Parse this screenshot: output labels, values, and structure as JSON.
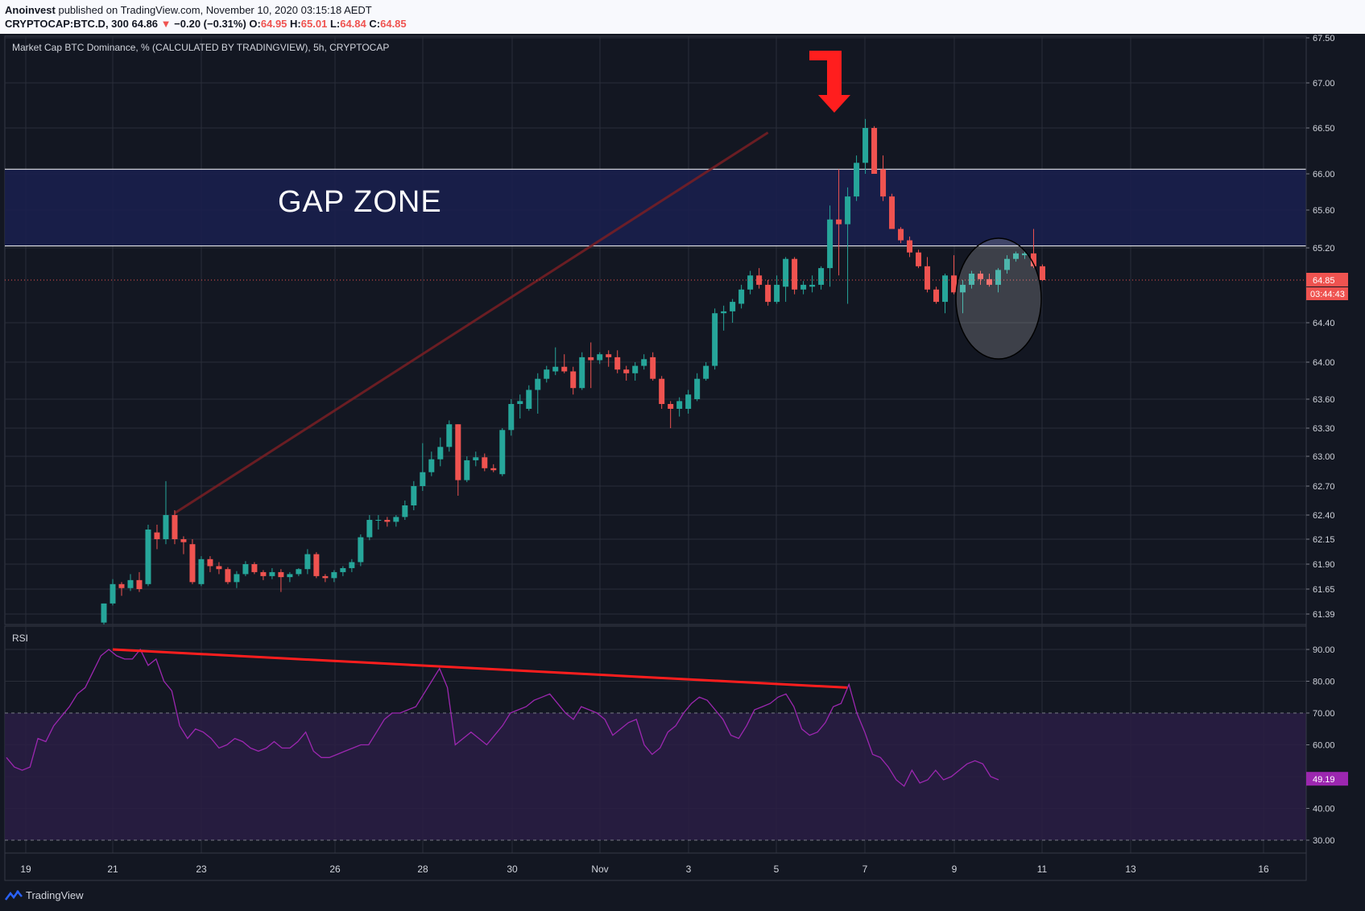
{
  "header": {
    "author": "Anoinvest",
    "published": "published on TradingView.com, November 10, 2020 03:15:18 AEDT",
    "symbol": "CRYPTOCAP:BTC.D, 300",
    "last": "64.86",
    "change_arrow": "▼",
    "change": "−0.20 (−0.31%)",
    "o_label": "O:",
    "o_value": "64.95",
    "h_label": "H:",
    "h_value": "65.01",
    "l_label": "L:",
    "l_value": "64.84",
    "c_label": "C:",
    "c_value": "64.85"
  },
  "main_pane": {
    "title": "Market Cap BTC Dominance, % (CALCULATED BY TRADINGVIEW), 5h, CRYPTOCAP",
    "gap_zone_label": "GAP ZONE",
    "price_badge": "64.85",
    "countdown_badge": "03:44:43"
  },
  "rsi_pane": {
    "title": "RSI",
    "value_badge": "49.19"
  },
  "footer": {
    "brand": "TradingView",
    "logo_icon": "tradingview-logo-icon"
  },
  "colors": {
    "background": "#131722",
    "bull": "#26a69a",
    "bear": "#ef5350",
    "gap_zone": "#1a1f4d",
    "rsi_band": "#2a1d44",
    "rsi_line": "#9c27b0",
    "annotation_red": "#ff1e1e"
  },
  "chart_data": [
    {
      "type": "candlestick",
      "title": "Market Cap BTC Dominance, % (CALCULATED BY TRADINGVIEW), 5h, CRYPTOCAP",
      "x_axis_labels": [
        "19",
        "21",
        "23",
        "26",
        "28",
        "30",
        "Nov",
        "3",
        "5",
        "7",
        "9",
        "11",
        "13",
        "16"
      ],
      "y_axis_labels": [
        "67.50",
        "67.00",
        "66.50",
        "66.00",
        "65.60",
        "65.20",
        "64.85",
        "64.40",
        "64.00",
        "63.60",
        "63.30",
        "63.00",
        "62.70",
        "62.40",
        "62.15",
        "61.90",
        "61.65",
        "61.39"
      ],
      "ylim": [
        61.3,
        67.5
      ],
      "gap_zone": [
        65.22,
        66.05
      ],
      "current_price": 64.85,
      "candles": [
        {
          "o": 61.3,
          "h": 61.5,
          "l": 61.28,
          "c": 61.5
        },
        {
          "o": 61.5,
          "h": 61.75,
          "l": 61.48,
          "c": 61.7
        },
        {
          "o": 61.7,
          "h": 61.72,
          "l": 61.58,
          "c": 61.66
        },
        {
          "o": 61.66,
          "h": 61.8,
          "l": 61.63,
          "c": 61.74
        },
        {
          "o": 61.74,
          "h": 61.82,
          "l": 61.62,
          "c": 61.65
        },
        {
          "o": 61.7,
          "h": 62.3,
          "l": 61.68,
          "c": 62.25
        },
        {
          "o": 62.22,
          "h": 62.3,
          "l": 62.05,
          "c": 62.15
        },
        {
          "o": 62.15,
          "h": 62.75,
          "l": 62.1,
          "c": 62.4
        },
        {
          "o": 62.4,
          "h": 62.45,
          "l": 62.1,
          "c": 62.15
        },
        {
          "o": 62.15,
          "h": 62.18,
          "l": 62.0,
          "c": 62.12
        },
        {
          "o": 62.1,
          "h": 62.15,
          "l": 61.7,
          "c": 61.72
        },
        {
          "o": 61.7,
          "h": 61.98,
          "l": 61.68,
          "c": 61.95
        },
        {
          "o": 61.95,
          "h": 61.98,
          "l": 61.82,
          "c": 61.88
        },
        {
          "o": 61.88,
          "h": 61.92,
          "l": 61.8,
          "c": 61.85
        },
        {
          "o": 61.85,
          "h": 61.87,
          "l": 61.7,
          "c": 61.72
        },
        {
          "o": 61.72,
          "h": 61.83,
          "l": 61.66,
          "c": 61.8
        },
        {
          "o": 61.8,
          "h": 61.93,
          "l": 61.78,
          "c": 61.9
        },
        {
          "o": 61.9,
          "h": 61.92,
          "l": 61.8,
          "c": 61.82
        },
        {
          "o": 61.82,
          "h": 61.84,
          "l": 61.74,
          "c": 61.78
        },
        {
          "o": 61.78,
          "h": 61.86,
          "l": 61.75,
          "c": 61.82
        },
        {
          "o": 61.82,
          "h": 61.85,
          "l": 61.62,
          "c": 61.77
        },
        {
          "o": 61.77,
          "h": 61.82,
          "l": 61.72,
          "c": 61.8
        },
        {
          "o": 61.8,
          "h": 61.86,
          "l": 61.78,
          "c": 61.85
        },
        {
          "o": 61.85,
          "h": 62.05,
          "l": 61.8,
          "c": 62.0
        },
        {
          "o": 62.0,
          "h": 62.02,
          "l": 61.76,
          "c": 61.78
        },
        {
          "o": 61.78,
          "h": 61.8,
          "l": 61.72,
          "c": 61.76
        },
        {
          "o": 61.76,
          "h": 61.84,
          "l": 61.72,
          "c": 61.82
        },
        {
          "o": 61.82,
          "h": 61.88,
          "l": 61.78,
          "c": 61.86
        },
        {
          "o": 61.86,
          "h": 61.95,
          "l": 61.82,
          "c": 61.92
        },
        {
          "o": 61.92,
          "h": 62.2,
          "l": 61.88,
          "c": 62.17
        },
        {
          "o": 62.17,
          "h": 62.4,
          "l": 62.14,
          "c": 62.35
        },
        {
          "o": 62.35,
          "h": 62.4,
          "l": 62.25,
          "c": 62.35
        },
        {
          "o": 62.35,
          "h": 62.38,
          "l": 62.28,
          "c": 62.33
        },
        {
          "o": 62.33,
          "h": 62.4,
          "l": 62.28,
          "c": 62.38
        },
        {
          "o": 62.38,
          "h": 62.55,
          "l": 62.35,
          "c": 62.5
        },
        {
          "o": 62.5,
          "h": 62.75,
          "l": 62.45,
          "c": 62.7
        },
        {
          "o": 62.7,
          "h": 63.14,
          "l": 62.65,
          "c": 62.84
        },
        {
          "o": 62.84,
          "h": 63.05,
          "l": 62.8,
          "c": 62.97
        },
        {
          "o": 62.97,
          "h": 63.2,
          "l": 62.9,
          "c": 63.1
        },
        {
          "o": 63.1,
          "h": 63.38,
          "l": 63.05,
          "c": 63.34
        },
        {
          "o": 63.34,
          "h": 63.34,
          "l": 62.6,
          "c": 62.76
        },
        {
          "o": 62.76,
          "h": 63.0,
          "l": 62.74,
          "c": 62.96
        },
        {
          "o": 62.96,
          "h": 63.05,
          "l": 62.9,
          "c": 62.99
        },
        {
          "o": 62.99,
          "h": 63.03,
          "l": 62.85,
          "c": 62.88
        },
        {
          "o": 62.88,
          "h": 62.92,
          "l": 62.84,
          "c": 62.86
        },
        {
          "o": 62.82,
          "h": 63.3,
          "l": 62.8,
          "c": 63.28
        },
        {
          "o": 63.28,
          "h": 63.6,
          "l": 63.22,
          "c": 63.55
        },
        {
          "o": 63.55,
          "h": 63.65,
          "l": 63.4,
          "c": 63.58
        },
        {
          "o": 63.5,
          "h": 63.75,
          "l": 63.48,
          "c": 63.7
        },
        {
          "o": 63.7,
          "h": 63.88,
          "l": 63.45,
          "c": 63.82
        },
        {
          "o": 63.82,
          "h": 63.96,
          "l": 63.78,
          "c": 63.92
        },
        {
          "o": 63.9,
          "h": 64.15,
          "l": 63.86,
          "c": 63.95
        },
        {
          "o": 63.95,
          "h": 64.08,
          "l": 63.88,
          "c": 63.9
        },
        {
          "o": 63.9,
          "h": 63.95,
          "l": 63.65,
          "c": 63.72
        },
        {
          "o": 63.72,
          "h": 64.1,
          "l": 63.7,
          "c": 64.05
        },
        {
          "o": 64.05,
          "h": 64.2,
          "l": 63.72,
          "c": 64.02
        },
        {
          "o": 64.02,
          "h": 64.1,
          "l": 63.98,
          "c": 64.08
        },
        {
          "o": 64.08,
          "h": 64.12,
          "l": 63.95,
          "c": 64.05
        },
        {
          "o": 64.05,
          "h": 64.12,
          "l": 63.88,
          "c": 63.92
        },
        {
          "o": 63.92,
          "h": 63.96,
          "l": 63.8,
          "c": 63.88
        },
        {
          "o": 63.88,
          "h": 64.0,
          "l": 63.8,
          "c": 63.96
        },
        {
          "o": 63.96,
          "h": 64.08,
          "l": 63.92,
          "c": 64.03
        },
        {
          "o": 64.05,
          "h": 64.1,
          "l": 63.8,
          "c": 63.82
        },
        {
          "o": 63.82,
          "h": 63.85,
          "l": 63.5,
          "c": 63.55
        },
        {
          "o": 63.55,
          "h": 63.58,
          "l": 63.3,
          "c": 63.5
        },
        {
          "o": 63.5,
          "h": 63.62,
          "l": 63.42,
          "c": 63.58
        },
        {
          "o": 63.5,
          "h": 63.7,
          "l": 63.45,
          "c": 63.65
        },
        {
          "o": 63.6,
          "h": 63.88,
          "l": 63.58,
          "c": 63.82
        },
        {
          "o": 63.82,
          "h": 64.0,
          "l": 63.8,
          "c": 63.96
        },
        {
          "o": 63.96,
          "h": 64.55,
          "l": 63.92,
          "c": 64.5
        },
        {
          "o": 64.5,
          "h": 64.58,
          "l": 64.32,
          "c": 64.52
        },
        {
          "o": 64.52,
          "h": 64.65,
          "l": 64.4,
          "c": 64.62
        },
        {
          "o": 64.6,
          "h": 64.8,
          "l": 64.55,
          "c": 64.75
        },
        {
          "o": 64.75,
          "h": 64.95,
          "l": 64.7,
          "c": 64.9
        },
        {
          "o": 64.9,
          "h": 64.98,
          "l": 64.76,
          "c": 64.8
        },
        {
          "o": 64.8,
          "h": 64.85,
          "l": 64.58,
          "c": 64.62
        },
        {
          "o": 64.62,
          "h": 64.9,
          "l": 64.6,
          "c": 64.8
        },
        {
          "o": 64.78,
          "h": 65.1,
          "l": 64.62,
          "c": 65.08
        },
        {
          "o": 65.08,
          "h": 65.1,
          "l": 64.7,
          "c": 64.75
        },
        {
          "o": 64.75,
          "h": 64.84,
          "l": 64.7,
          "c": 64.8
        },
        {
          "o": 64.78,
          "h": 64.9,
          "l": 64.72,
          "c": 64.8
        },
        {
          "o": 64.8,
          "h": 65.0,
          "l": 64.75,
          "c": 64.98
        },
        {
          "o": 64.98,
          "h": 65.65,
          "l": 64.78,
          "c": 65.5
        },
        {
          "o": 65.5,
          "h": 66.05,
          "l": 64.9,
          "c": 65.45
        },
        {
          "o": 65.45,
          "h": 65.85,
          "l": 64.6,
          "c": 65.75
        },
        {
          "o": 65.75,
          "h": 66.2,
          "l": 65.7,
          "c": 66.12
        },
        {
          "o": 66.12,
          "h": 66.6,
          "l": 66.0,
          "c": 66.5
        },
        {
          "o": 66.5,
          "h": 66.52,
          "l": 66.0,
          "c": 66.0
        },
        {
          "o": 66.05,
          "h": 66.2,
          "l": 65.7,
          "c": 65.75
        },
        {
          "o": 65.75,
          "h": 65.78,
          "l": 65.4,
          "c": 65.4
        },
        {
          "o": 65.4,
          "h": 65.42,
          "l": 65.25,
          "c": 65.28
        },
        {
          "o": 65.28,
          "h": 65.32,
          "l": 65.1,
          "c": 65.15
        },
        {
          "o": 65.15,
          "h": 65.18,
          "l": 64.98,
          "c": 65.0
        },
        {
          "o": 65.0,
          "h": 65.1,
          "l": 64.72,
          "c": 64.75
        },
        {
          "o": 64.75,
          "h": 64.78,
          "l": 64.6,
          "c": 64.62
        },
        {
          "o": 64.62,
          "h": 64.92,
          "l": 64.5,
          "c": 64.9
        },
        {
          "o": 64.9,
          "h": 65.12,
          "l": 64.7,
          "c": 64.72
        },
        {
          "o": 64.72,
          "h": 64.85,
          "l": 64.5,
          "c": 64.8
        },
        {
          "o": 64.8,
          "h": 64.95,
          "l": 64.76,
          "c": 64.92
        },
        {
          "o": 64.92,
          "h": 64.95,
          "l": 64.8,
          "c": 64.86
        },
        {
          "o": 64.86,
          "h": 64.92,
          "l": 64.78,
          "c": 64.8
        },
        {
          "o": 64.8,
          "h": 64.98,
          "l": 64.72,
          "c": 64.96
        },
        {
          "o": 64.96,
          "h": 65.12,
          "l": 64.92,
          "c": 65.08
        },
        {
          "o": 65.08,
          "h": 65.16,
          "l": 65.05,
          "c": 65.14
        },
        {
          "o": 65.12,
          "h": 65.17,
          "l": 65.08,
          "c": 65.14
        },
        {
          "o": 65.14,
          "h": 65.4,
          "l": 64.98,
          "c": 65.0
        },
        {
          "o": 65.0,
          "h": 65.02,
          "l": 64.84,
          "c": 64.85
        }
      ]
    },
    {
      "type": "line",
      "title": "RSI",
      "y_axis_labels": [
        "90.00",
        "80.00",
        "70.00",
        "60.00",
        "49.19",
        "40.00",
        "30.00"
      ],
      "ylim": [
        26,
        97
      ],
      "bands": [
        30,
        70
      ],
      "last_value": 49.19,
      "series": [
        {
          "values": [
            56,
            53,
            52,
            53,
            62,
            61,
            66,
            69,
            72,
            76,
            78,
            83,
            88,
            90,
            88,
            87,
            87,
            90,
            85,
            87,
            80,
            77,
            66,
            62,
            65,
            64,
            62,
            59,
            60,
            62,
            61,
            59,
            58,
            59,
            61,
            59,
            59,
            61,
            64,
            58,
            56,
            56,
            57,
            58,
            59,
            60,
            60,
            64,
            68,
            70,
            70,
            71,
            72,
            76,
            80,
            84,
            78,
            60,
            62,
            64,
            62,
            60,
            63,
            66,
            70,
            71,
            72,
            74,
            75,
            76,
            73,
            70,
            68,
            72,
            71,
            70,
            68,
            63,
            65,
            67,
            68,
            60,
            57,
            59,
            64,
            66,
            70,
            73,
            75,
            74,
            71,
            68,
            63,
            62,
            66,
            71,
            72,
            73,
            75,
            76,
            72,
            65,
            63,
            64,
            67,
            72,
            73,
            79,
            70,
            64,
            57,
            56,
            53,
            49,
            47,
            52,
            48,
            49,
            52,
            49,
            50,
            52,
            54,
            55,
            54,
            50,
            49
          ]
        }
      ],
      "annotations": [
        "descending trendline 90 → 78"
      ]
    }
  ]
}
